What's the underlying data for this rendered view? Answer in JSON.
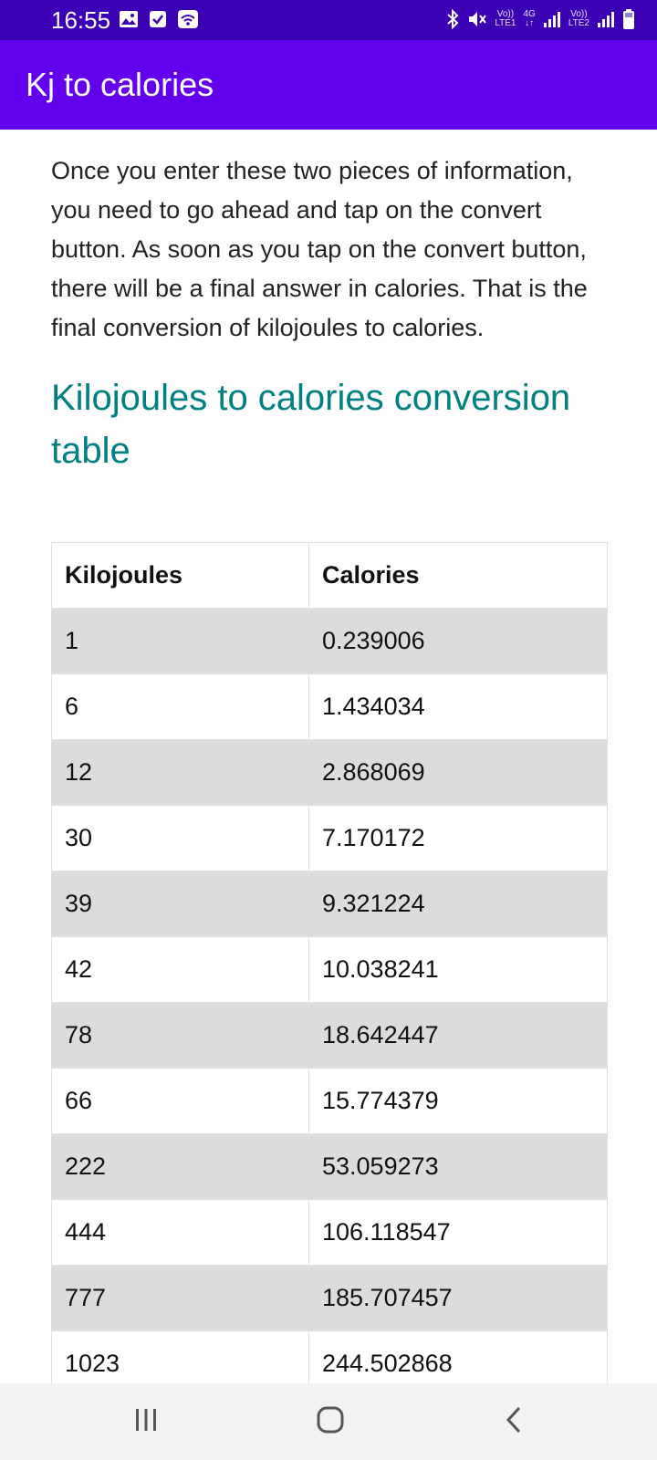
{
  "status_bar": {
    "time": "16:55",
    "left_icons": [
      "image-icon",
      "checkbox-icon",
      "wifi-icon"
    ],
    "right_icons": [
      "bluetooth-icon",
      "mute-icon",
      "signal-icon",
      "signal-icon",
      "battery-icon"
    ],
    "sim1_top": "Vo))",
    "sim1_bottom": "LTE1",
    "network_type": "4G",
    "sim2_top": "Vo))",
    "sim2_bottom": "LTE2"
  },
  "app_bar": {
    "title": "Kj to calories",
    "background": "#6200ee"
  },
  "content": {
    "paragraph": "Once you enter these two pieces of information, you need to go ahead and tap on the convert button. As soon as you tap on the convert button, there will be a final answer in calories. That is the final conversion of kilojoules to calories.",
    "heading": "Kilojoules to calories conversion table",
    "heading_color": "#008080"
  },
  "table": {
    "headers": [
      "Kilojoules",
      "Calories"
    ],
    "rows": [
      [
        "1",
        "0.239006"
      ],
      [
        "6",
        "1.434034"
      ],
      [
        "12",
        "2.868069"
      ],
      [
        "30",
        "7.170172"
      ],
      [
        "39",
        "9.321224"
      ],
      [
        "42",
        "10.038241"
      ],
      [
        "78",
        "18.642447"
      ],
      [
        "66",
        "15.774379"
      ],
      [
        "222",
        "53.059273"
      ],
      [
        "444",
        "106.118547"
      ],
      [
        "777",
        "185.707457"
      ],
      [
        "1023",
        "244.502868"
      ]
    ]
  },
  "nav_bar": {
    "buttons": [
      "recent-apps-icon",
      "home-icon",
      "back-icon"
    ]
  }
}
